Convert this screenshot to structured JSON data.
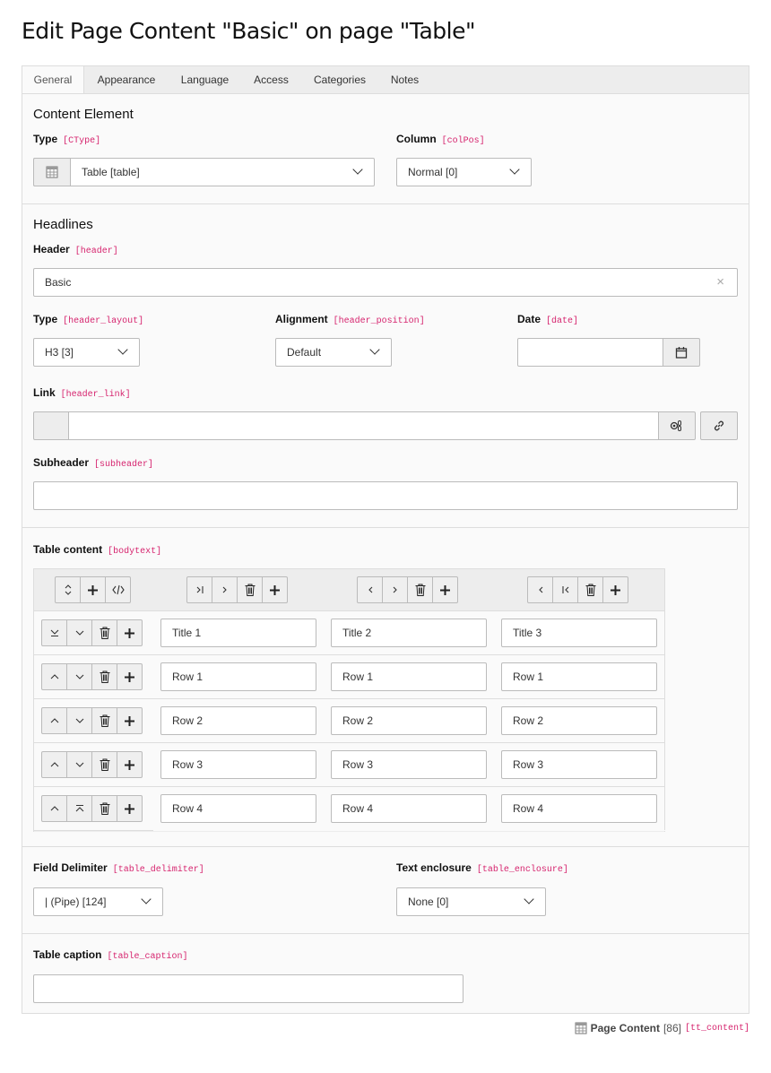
{
  "title": "Edit Page Content \"Basic\" on page \"Table\"",
  "tabs": [
    "General",
    "Appearance",
    "Language",
    "Access",
    "Categories",
    "Notes"
  ],
  "content_element": {
    "heading": "Content Element",
    "type_label": "Type",
    "type_field": "[CType]",
    "type_value": "Table [table]",
    "column_label": "Column",
    "column_field": "[colPos]",
    "column_value": "Normal [0]"
  },
  "headlines": {
    "heading": "Headlines",
    "header_label": "Header",
    "header_field": "[header]",
    "header_value": "Basic",
    "type_label": "Type",
    "type_field": "[header_layout]",
    "type_value": "H3 [3]",
    "align_label": "Alignment",
    "align_field": "[header_position]",
    "align_value": "Default",
    "date_label": "Date",
    "date_field": "[date]",
    "date_value": "",
    "link_label": "Link",
    "link_field": "[header_link]",
    "link_value": "",
    "sub_label": "Subheader",
    "sub_field": "[subheader]",
    "sub_value": ""
  },
  "table": {
    "label": "Table content",
    "field": "[bodytext]",
    "rows": [
      [
        "Title 1",
        "Title 2",
        "Title 3"
      ],
      [
        "Row 1",
        "Row 1",
        "Row 1"
      ],
      [
        "Row 2",
        "Row 2",
        "Row 2"
      ],
      [
        "Row 3",
        "Row 3",
        "Row 3"
      ],
      [
        "Row 4",
        "Row 4",
        "Row 4"
      ]
    ]
  },
  "delimiter": {
    "label": "Field Delimiter",
    "field": "[table_delimiter]",
    "value": "| (Pipe) [124]"
  },
  "enclosure": {
    "label": "Text enclosure",
    "field": "[table_enclosure]",
    "value": "None [0]"
  },
  "caption": {
    "label": "Table caption",
    "field": "[table_caption]",
    "value": ""
  },
  "footer": {
    "name": "Page Content",
    "id": "[86]",
    "table": "[tt_content]"
  },
  "colors": {
    "accent": "#d6246e",
    "panel": "#fafafa"
  }
}
